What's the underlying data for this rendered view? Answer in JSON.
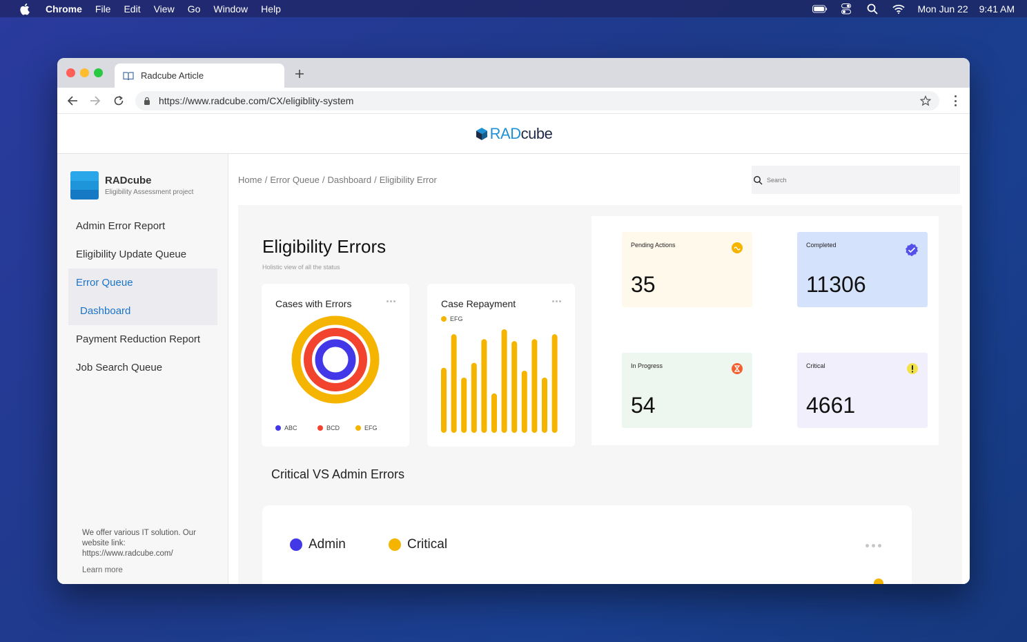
{
  "menubar": {
    "app": "Chrome",
    "items": [
      "File",
      "Edit",
      "View",
      "Go",
      "Window",
      "Help"
    ],
    "date": "Mon Jun 22",
    "time": "9:41 AM"
  },
  "browser": {
    "tab_title": "Radcube Article",
    "url": "https://www.radcube.com/CX/eligiblity-system"
  },
  "site": {
    "logo_rad": "RAD",
    "logo_cube": "cube"
  },
  "sidebar": {
    "project_name": "RADcube",
    "project_sub": "Eligibility Assessment project",
    "items": [
      {
        "label": "Admin Error Report"
      },
      {
        "label": "Eligibility Update Queue"
      },
      {
        "label": "Error Queue"
      },
      {
        "label": "Dashboard"
      },
      {
        "label": "Payment Reduction Report"
      },
      {
        "label": "Job Search Queue"
      }
    ],
    "footer_text": "We offer various IT solution. Our website link: https://www.radcube.com/",
    "learn_more": "Learn more"
  },
  "breadcrumb": [
    "Home",
    "/",
    "Error Queue",
    "/",
    "Dashboard",
    "/",
    "Eligibility Error"
  ],
  "search": {
    "placeholder": "Search"
  },
  "dashboard": {
    "title": "Eligibility Errors",
    "subtitle": "Holistic view of all the status",
    "cases_card": {
      "title": "Cases with Errors",
      "legend": [
        {
          "label": "ABC",
          "color": "#4338e8"
        },
        {
          "label": "BCD",
          "color": "#f2432f"
        },
        {
          "label": "EFG",
          "color": "#f5b400"
        }
      ]
    },
    "repayment_card": {
      "title": "Case Repayment",
      "legend": [
        {
          "label": "EFG",
          "color": "#f5b400"
        }
      ],
      "bar_values": [
        0.66,
        1.0,
        0.56,
        0.71,
        0.95,
        0.4,
        1.05,
        0.93,
        0.63,
        0.95,
        0.56,
        1.0
      ]
    },
    "stats": [
      {
        "label": "Pending Actions",
        "value": "35",
        "icon": "clock-icon",
        "bg": "#fff9ec",
        "icon_color": "#f5b400"
      },
      {
        "label": "Completed",
        "value": "11306",
        "icon": "check-icon",
        "bg": "#d5e2fb",
        "icon_color": "#5551e8"
      },
      {
        "label": "In Progress",
        "value": "54",
        "icon": "hourglass-icon",
        "bg": "#edf6ef",
        "icon_color": "#f2602f"
      },
      {
        "label": "Critical",
        "value": "4661",
        "icon": "alert-icon",
        "bg": "#f1effb",
        "icon_color": "#f2e24a"
      }
    ],
    "section_title": "Critical VS Admin Errors",
    "bottom_legend": [
      {
        "label": "Admin",
        "color": "#4338e8"
      },
      {
        "label": "Critical",
        "color": "#f5b400"
      }
    ]
  }
}
